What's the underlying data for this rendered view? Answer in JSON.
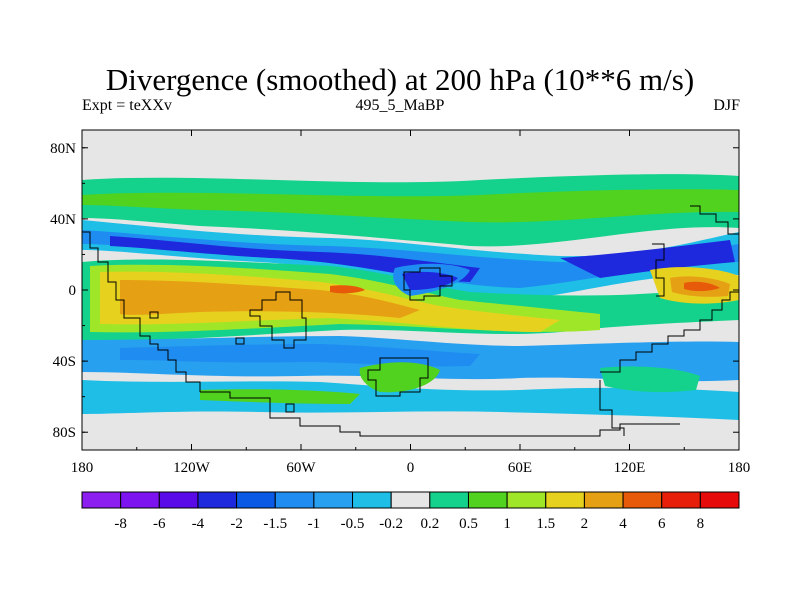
{
  "title": "Divergence (smoothed) at 200 hPa (10**6 m/s)",
  "subtitle_left": "Expt = teXXv",
  "subtitle_center": "495_5_MaBP",
  "subtitle_right": "DJF",
  "map": {
    "projection": "cylindrical-equidistant",
    "lon_range": [
      -180,
      180
    ],
    "lat_range": [
      -90,
      90
    ],
    "lat_tick_labels": [
      "80N",
      "40N",
      "0",
      "40S",
      "80S"
    ],
    "lat_tick_values": [
      80,
      40,
      0,
      -40,
      -80
    ],
    "lon_tick_labels": [
      "180",
      "120W",
      "60W",
      "0",
      "60E",
      "120E",
      "180"
    ],
    "lon_tick_values": [
      -180,
      -120,
      -60,
      0,
      60,
      120,
      180
    ],
    "background_color": "#e6e6e6",
    "coastline_color": "#000000"
  },
  "colorbar": {
    "labels": [
      "-8",
      "-6",
      "-4",
      "-2",
      "-1.5",
      "-1",
      "-0.5",
      "-0.2",
      "0.2",
      "0.5",
      "1",
      "1.5",
      "2",
      "4",
      "6",
      "8"
    ],
    "colors": [
      "#8c1ef0",
      "#7d14f0",
      "#5a0ae6",
      "#1e28dc",
      "#0a5ae6",
      "#1e8cf0",
      "#28a0f0",
      "#1ebee6",
      "#e6e6e6",
      "#14d28c",
      "#50d21e",
      "#a0e628",
      "#e6d21e",
      "#e6a014",
      "#e65a0a",
      "#e61e0a",
      "#e60a0a"
    ]
  }
}
